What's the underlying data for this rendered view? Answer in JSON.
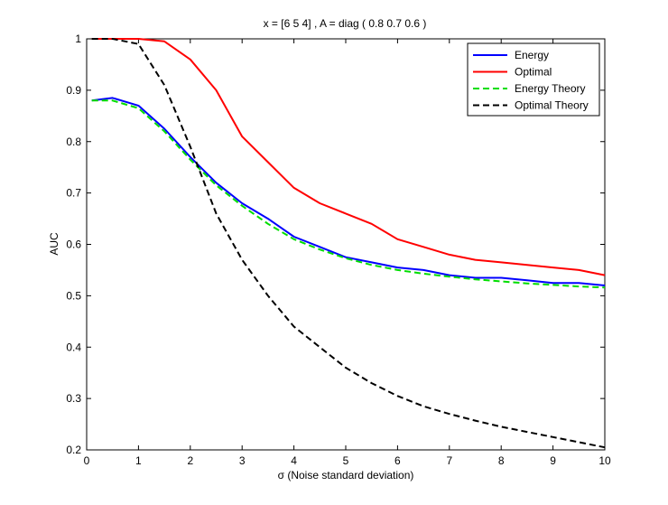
{
  "chart_data": {
    "type": "line",
    "title": "x = [6  5  4] ,  A = diag ( 0.8          0.7          0.6 )",
    "xlabel": "σ (Noise standard deviation)",
    "ylabel": "AUC",
    "xlim": [
      0,
      10
    ],
    "ylim": [
      0.2,
      1
    ],
    "xticks": [
      "0",
      "1",
      "2",
      "3",
      "4",
      "5",
      "6",
      "7",
      "8",
      "9",
      "10"
    ],
    "yticks": [
      "0.2",
      "0.3",
      "0.4",
      "0.5",
      "0.6",
      "0.7",
      "0.8",
      "0.9",
      "1"
    ],
    "grid": false,
    "legend_position": "top-right",
    "x": [
      0.1,
      0.5,
      1.0,
      1.5,
      2.0,
      2.5,
      3.0,
      3.5,
      4.0,
      4.5,
      5.0,
      5.5,
      6.0,
      6.5,
      7.0,
      7.5,
      8.0,
      8.5,
      9.0,
      9.5,
      10.0
    ],
    "series": [
      {
        "name": "Energy",
        "color": "#0000ff",
        "dash": "solid",
        "values": [
          0.88,
          0.885,
          0.87,
          0.825,
          0.77,
          0.72,
          0.68,
          0.65,
          0.615,
          0.595,
          0.575,
          0.565,
          0.555,
          0.55,
          0.54,
          0.535,
          0.535,
          0.53,
          0.525,
          0.525,
          0.52
        ]
      },
      {
        "name": "Optimal",
        "color": "#ff0000",
        "dash": "solid",
        "values": [
          1.0,
          1.0,
          1.0,
          0.995,
          0.96,
          0.9,
          0.81,
          0.76,
          0.71,
          0.68,
          0.66,
          0.64,
          0.61,
          0.595,
          0.58,
          0.57,
          0.565,
          0.56,
          0.555,
          0.55,
          0.54
        ]
      },
      {
        "name": "Energy Theory",
        "color": "#00dd00",
        "dash": "dashed",
        "values": [
          0.88,
          0.88,
          0.865,
          0.82,
          0.765,
          0.715,
          0.675,
          0.64,
          0.61,
          0.59,
          0.573,
          0.56,
          0.55,
          0.543,
          0.537,
          0.532,
          0.528,
          0.524,
          0.521,
          0.518,
          0.516
        ]
      },
      {
        "name": "Optimal Theory",
        "color": "#000000",
        "dash": "dashed",
        "values": [
          1.0,
          1.0,
          0.99,
          0.91,
          0.79,
          0.66,
          0.57,
          0.5,
          0.44,
          0.4,
          0.36,
          0.33,
          0.305,
          0.285,
          0.27,
          0.257,
          0.245,
          0.235,
          0.225,
          0.215,
          0.205
        ]
      }
    ]
  }
}
